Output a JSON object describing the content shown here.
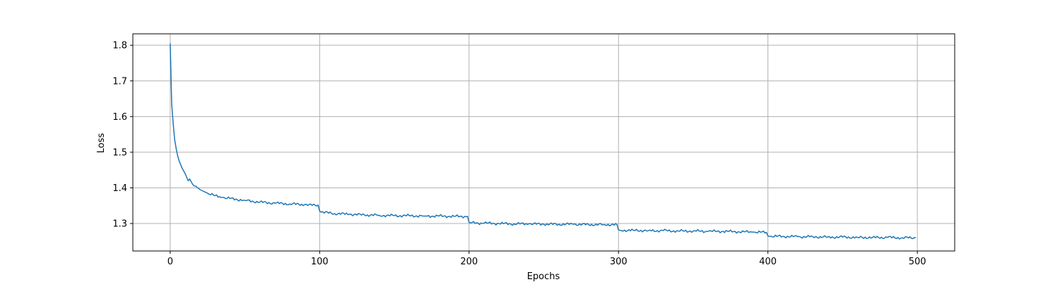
{
  "chart_data": {
    "type": "line",
    "title": "",
    "xlabel": "Epochs",
    "ylabel": "Loss",
    "xlim": [
      -25,
      525
    ],
    "ylim": [
      1.223,
      1.832
    ],
    "grid": true,
    "legend": "none",
    "x_ticks": [
      0,
      100,
      200,
      300,
      400,
      500
    ],
    "y_ticks": [
      1.3,
      1.4,
      1.5,
      1.6,
      1.7,
      1.8
    ],
    "x_tick_labels": [
      "0",
      "100",
      "200",
      "300",
      "400",
      "500"
    ],
    "y_tick_labels": [
      "1.3",
      "1.4",
      "1.5",
      "1.6",
      "1.7",
      "1.8"
    ],
    "line_color": "#1f77b4",
    "grid_color": "#b0b0b0",
    "series": [
      {
        "name": "loss",
        "x": [
          0,
          1,
          2,
          3,
          4,
          5,
          6,
          8,
          10,
          12,
          13,
          15,
          17,
          20,
          25,
          30,
          35,
          40,
          50,
          60,
          70,
          80,
          90,
          95,
          99,
          100,
          101,
          110,
          120,
          130,
          140,
          150,
          160,
          170,
          180,
          190,
          199,
          200,
          201,
          210,
          220,
          230,
          240,
          250,
          260,
          270,
          280,
          290,
          299,
          300,
          301,
          310,
          320,
          330,
          340,
          350,
          360,
          370,
          380,
          390,
          399,
          400,
          401,
          410,
          420,
          430,
          440,
          450,
          460,
          470,
          480,
          490,
          499
        ],
        "values": [
          1.805,
          1.635,
          1.58,
          1.535,
          1.51,
          1.49,
          1.475,
          1.455,
          1.44,
          1.42,
          1.425,
          1.41,
          1.405,
          1.395,
          1.385,
          1.378,
          1.373,
          1.37,
          1.365,
          1.36,
          1.357,
          1.355,
          1.353,
          1.351,
          1.352,
          1.335,
          1.332,
          1.328,
          1.326,
          1.324,
          1.323,
          1.322,
          1.322,
          1.321,
          1.321,
          1.32,
          1.32,
          1.303,
          1.302,
          1.301,
          1.3,
          1.299,
          1.299,
          1.298,
          1.298,
          1.298,
          1.297,
          1.297,
          1.297,
          1.282,
          1.281,
          1.281,
          1.28,
          1.28,
          1.279,
          1.279,
          1.278,
          1.278,
          1.277,
          1.276,
          1.275,
          1.265,
          1.264,
          1.264,
          1.263,
          1.263,
          1.262,
          1.262,
          1.261,
          1.261,
          1.261,
          1.26,
          1.26
        ]
      }
    ]
  }
}
